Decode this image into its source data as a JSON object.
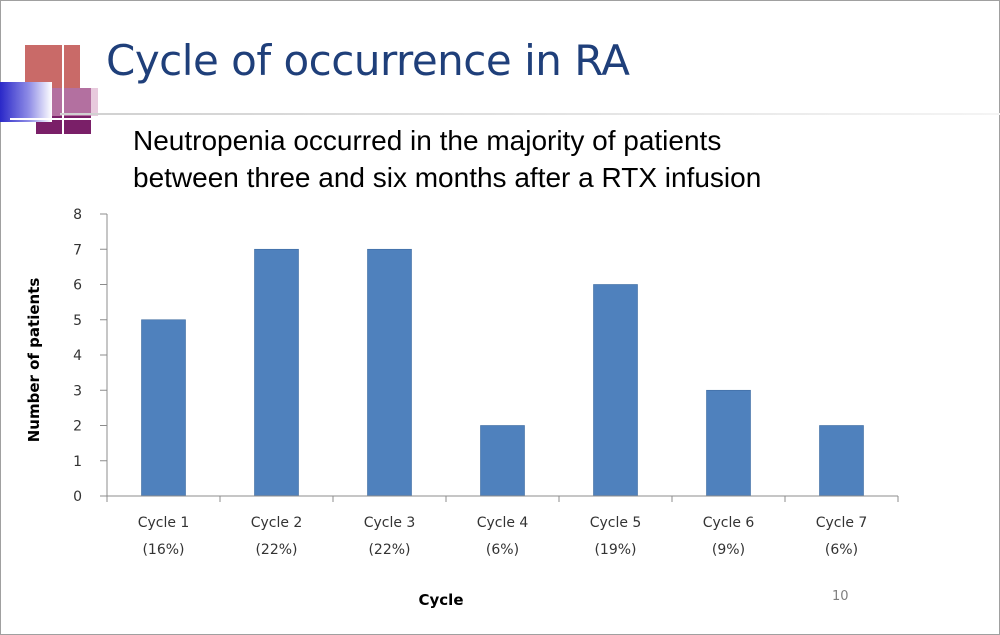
{
  "slide": {
    "title": "Cycle of occurrence in RA",
    "subtitle_lines": [
      "Neutropenia occurred in the majority of patients",
      "between three and six months after a RTX infusion"
    ],
    "page_number": "10"
  },
  "chart_data": {
    "type": "bar",
    "categories": [
      [
        "Cycle 1",
        "(16%)"
      ],
      [
        "Cycle 2",
        "(22%)"
      ],
      [
        "Cycle 3",
        "(22%)"
      ],
      [
        "Cycle 4",
        "(6%)"
      ],
      [
        "Cycle 5",
        "(19%)"
      ],
      [
        "Cycle 6",
        "(9%)"
      ],
      [
        "Cycle 7",
        "(6%)"
      ]
    ],
    "values": [
      5,
      7,
      7,
      2,
      6,
      3,
      2
    ],
    "xlabel": "Cycle",
    "ylabel": "Number of patients",
    "ylim": [
      0,
      8
    ],
    "yticks": [
      0,
      1,
      2,
      3,
      4,
      5,
      6,
      7,
      8
    ],
    "grid": false,
    "legend": "none",
    "bar_color": "#4f81bd"
  }
}
